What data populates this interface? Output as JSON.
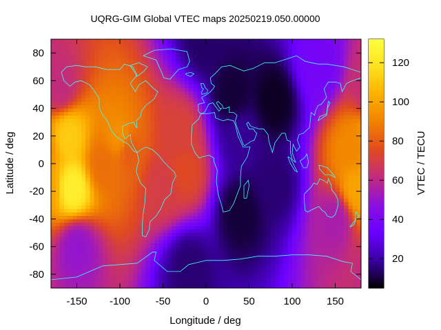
{
  "chart_data": {
    "type": "heatmap",
    "title": "UQRG-GIM Global VTEC maps 20250219.050.00000",
    "xlabel": "Longitude / deg",
    "ylabel": "Latitude / deg",
    "colorbar_label": "VTEC / TECU",
    "xlim": [
      -180,
      180
    ],
    "ylim": [
      -90,
      90
    ],
    "zlim": [
      5,
      132
    ],
    "x_ticks": [
      -150,
      -100,
      -50,
      0,
      50,
      100,
      150
    ],
    "y_ticks": [
      -80,
      -60,
      -40,
      -20,
      0,
      20,
      40,
      60,
      80
    ],
    "colorbar_ticks": [
      20,
      40,
      60,
      80,
      100,
      120
    ],
    "grid": false,
    "colormap": [
      "#000000",
      "#3a00a0",
      "#6a00ff",
      "#8a10e0",
      "#c02a80",
      "#e04a20",
      "#f08000",
      "#fcb000",
      "#ffe020",
      "#ffff40"
    ],
    "coastline_color": "#40ffff",
    "grid_step_deg": [
      5,
      2.5
    ],
    "features": [
      {
        "lon": -160,
        "lat": 20,
        "value": 112
      },
      {
        "lon": -155,
        "lat": -18,
        "value": 125
      },
      {
        "lon": -120,
        "lat": 0,
        "value": 85
      },
      {
        "lon": -100,
        "lat": 18,
        "value": 95
      },
      {
        "lon": -90,
        "lat": 10,
        "value": 80
      },
      {
        "lon": -50,
        "lat": -15,
        "value": 70
      },
      {
        "lon": -30,
        "lat": 22,
        "value": 72
      },
      {
        "lon": -25,
        "lat": -5,
        "value": 75
      },
      {
        "lon": -170,
        "lat": 55,
        "value": 62
      },
      {
        "lon": 170,
        "lat": 10,
        "value": 92
      },
      {
        "lon": 175,
        "lat": -18,
        "value": 100
      },
      {
        "lon": 150,
        "lat": -40,
        "value": 55
      },
      {
        "lon": 30,
        "lat": 50,
        "value": 10
      },
      {
        "lon": 80,
        "lat": 45,
        "value": 8
      },
      {
        "lon": 40,
        "lat": 20,
        "value": 18
      },
      {
        "lon": 40,
        "lat": -35,
        "value": 10
      },
      {
        "lon": 80,
        "lat": -15,
        "value": 15
      },
      {
        "lon": 0,
        "lat": 88,
        "value": 14
      },
      {
        "lon": -20,
        "lat": -75,
        "value": 15
      },
      {
        "lon": 130,
        "lat": 70,
        "value": 38
      },
      {
        "lon": -150,
        "lat": -60,
        "value": 50
      }
    ]
  }
}
